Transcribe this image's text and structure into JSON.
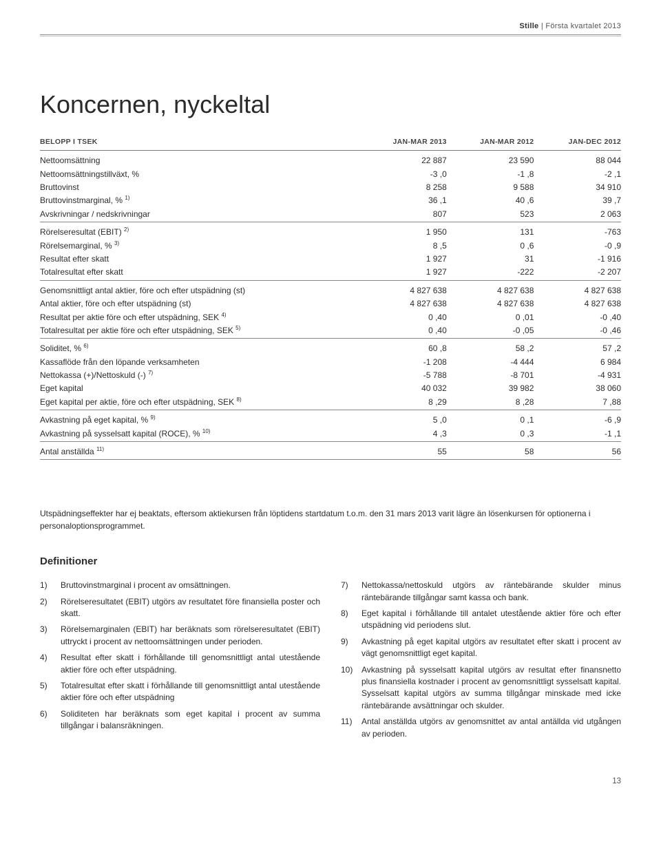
{
  "header": {
    "brand": "Stille",
    "sep": " | ",
    "period": "Första kvartalet 2013"
  },
  "title": "Koncernen, nyckeltal",
  "table": {
    "columns": [
      "BELOPP I TSEK",
      "JAN-MAR 2013",
      "JAN-MAR 2012",
      "JAN-DEC 2012"
    ],
    "blocks": [
      [
        {
          "label": "Nettoomsättning",
          "v": [
            "22 887",
            "23 590",
            "88 044"
          ]
        },
        {
          "label": "Nettoomsättningstillväxt, %",
          "v": [
            "-3 ,0",
            "-1 ,8",
            "-2 ,1"
          ]
        },
        {
          "label": "Bruttovinst",
          "v": [
            "8 258",
            "9 588",
            "34 910"
          ]
        },
        {
          "label": "Bruttovinstmarginal, %",
          "sup": "1)",
          "v": [
            "36 ,1",
            "40 ,6",
            "39 ,7"
          ]
        },
        {
          "label": "Avskrivningar / nedskrivningar",
          "v": [
            "807",
            "523",
            "2 063"
          ]
        }
      ],
      [
        {
          "label": "Rörelseresultat (EBIT)",
          "sup": "2)",
          "v": [
            "1 950",
            "131",
            "-763"
          ]
        },
        {
          "label": "Rörelsemarginal, %",
          "sup": "3)",
          "v": [
            "8 ,5",
            "0 ,6",
            "-0 ,9"
          ]
        },
        {
          "label": "Resultat efter skatt",
          "v": [
            "1 927",
            "31",
            "-1 916"
          ]
        },
        {
          "label": "Totalresultat efter skatt",
          "v": [
            "1 927",
            "-222",
            "-2 207"
          ]
        }
      ],
      [
        {
          "label": "Genomsnittligt antal aktier, före och efter utspädning (st)",
          "v": [
            "4 827 638",
            "4 827 638",
            "4 827 638"
          ]
        },
        {
          "label": "Antal aktier, före och efter utspädning (st)",
          "v": [
            "4 827 638",
            "4 827 638",
            "4 827 638"
          ]
        },
        {
          "label": "Resultat per aktie före och efter utspädning, SEK",
          "sup": "4)",
          "v": [
            "0 ,40",
            "0 ,01",
            "-0 ,40"
          ]
        },
        {
          "label": "Totalresultat per aktie före och efter utspädning, SEK",
          "sup": "5)",
          "v": [
            "0 ,40",
            "-0 ,05",
            "-0 ,46"
          ]
        }
      ],
      [
        {
          "label": "Soliditet, %",
          "sup": "6)",
          "v": [
            "60 ,8",
            "58 ,2",
            "57 ,2"
          ]
        },
        {
          "label": "Kassaflöde från den löpande verksamheten",
          "v": [
            "-1 208",
            "-4 444",
            "6 984"
          ]
        },
        {
          "label": "Nettokassa (+)/Nettoskuld (-)",
          "sup": "7)",
          "v": [
            "-5 788",
            "-8 701",
            "-4 931"
          ]
        },
        {
          "label": "Eget kapital",
          "v": [
            "40 032",
            "39 982",
            "38 060"
          ]
        },
        {
          "label": "Eget kapital per aktie, före och efter utspädning, SEK",
          "sup": "8)",
          "v": [
            "8 ,29",
            "8 ,28",
            "7 ,88"
          ]
        }
      ],
      [
        {
          "label": "Avkastning på eget kapital, %",
          "sup": "9)",
          "v": [
            "5 ,0",
            "0 ,1",
            "-6 ,9"
          ]
        },
        {
          "label": "Avkastning på sysselsatt kapital (ROCE), %",
          "sup": "10)",
          "v": [
            "4 ,3",
            "0 ,3",
            "-1 ,1"
          ]
        }
      ],
      [
        {
          "label": "Antal anställda",
          "sup": "11)",
          "v": [
            "55",
            "58",
            "56"
          ]
        }
      ]
    ]
  },
  "footnote": "Utspädningseffekter har ej beaktats, eftersom aktiekursen från löptidens startdatum t.o.m. den 31 mars 2013 varit lägre än lösenkursen för optionerna i personaloptionsprogrammet.",
  "definitions": {
    "heading": "Definitioner",
    "left": [
      {
        "n": "1)",
        "t": "Bruttovinstmarginal i procent av omsättningen."
      },
      {
        "n": "2)",
        "t": "Rörelseresultatet (EBIT) utgörs av resultatet före finansiella poster och skatt."
      },
      {
        "n": "3)",
        "t": "Rörelsemarginalen (EBIT) har beräknats som rörelseresultatet (EBIT) uttryckt i procent av nettoomsättningen under perioden."
      },
      {
        "n": "4)",
        "t": "Resultat efter skatt i förhållande till genomsnittligt antal utestående aktier före och efter utspädning."
      },
      {
        "n": "5)",
        "t": "Totalresultat efter skatt i förhållande till genomsnittligt antal utestående aktier före och efter utspädning"
      },
      {
        "n": "6)",
        "t": "Soliditeten har beräknats som eget kapital i procent av summa tillgångar i balansräkningen."
      }
    ],
    "right": [
      {
        "n": "7)",
        "t": "Nettokassa/nettoskuld utgörs av räntebärande skulder minus räntebärande tillgångar samt kassa och bank."
      },
      {
        "n": "8)",
        "t": "Eget kapital i förhållande till antalet utestående aktier före och efter utspädning vid periodens slut."
      },
      {
        "n": "9)",
        "t": "Avkastning på eget kapital utgörs av resultatet efter skatt i procent av vägt genomsnittligt eget kapital."
      },
      {
        "n": "10)",
        "t": "Avkastning på sysselsatt kapital utgörs av resultat efter finansnetto plus finansiella kostnader i procent av genomsnittligt sysselsatt kapital. Sysselsatt kapital utgörs av summa tillgångar minskade med icke räntebärande avsättningar och skulder."
      },
      {
        "n": "11)",
        "t": "Antal anställda utgörs av genomsnittet av antal antällda vid utgången av perioden."
      }
    ]
  },
  "page_number": "13"
}
